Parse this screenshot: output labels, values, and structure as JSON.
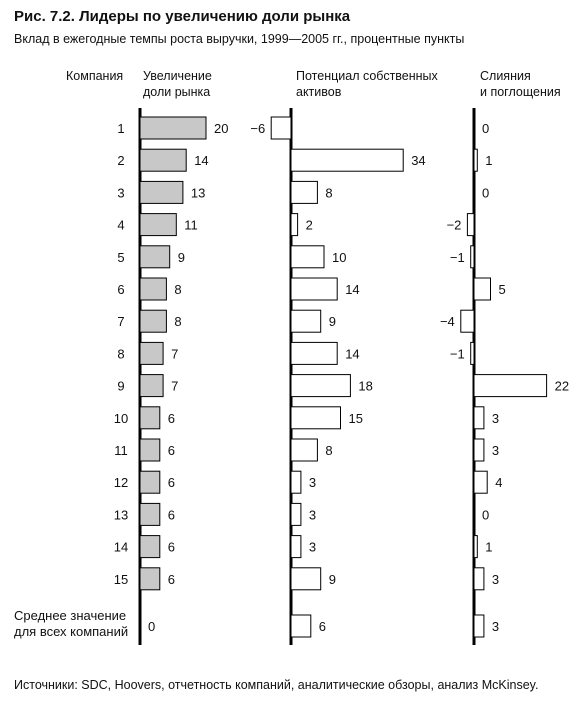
{
  "title": "Рис. 7.2. Лидеры по увеличению доли рынка",
  "subtitle": "Вклад в ежегодные темпы роста выручки, 1999—2005 гг., процентные пункты",
  "source": "Источники: SDC, Hoovers, отчетность компаний, аналитические обзоры, анализ McKinsey.",
  "chart_data": {
    "type": "bar",
    "orientation": "horizontal",
    "category_header": "Компания",
    "categories": [
      "1",
      "2",
      "3",
      "4",
      "5",
      "6",
      "7",
      "8",
      "9",
      "10",
      "11",
      "12",
      "13",
      "14",
      "15",
      "Среднее значение\nдля всех компаний"
    ],
    "series": [
      {
        "name": "Увеличение\nдоли рынка",
        "color": "#c8c8c8",
        "values": [
          20,
          14,
          13,
          11,
          9,
          8,
          8,
          7,
          7,
          6,
          6,
          6,
          6,
          6,
          6,
          0
        ]
      },
      {
        "name": "Потенциал собственных\nактивов",
        "color": "#ffffff",
        "values": [
          -6,
          34,
          8,
          2,
          10,
          14,
          9,
          14,
          18,
          15,
          8,
          3,
          3,
          3,
          9,
          6
        ]
      },
      {
        "name": "Слияния\nи поглощения",
        "color": "#ffffff",
        "values": [
          0,
          1,
          0,
          -2,
          -1,
          5,
          -4,
          -1,
          22,
          3,
          3,
          4,
          0,
          1,
          3,
          3
        ]
      }
    ]
  }
}
